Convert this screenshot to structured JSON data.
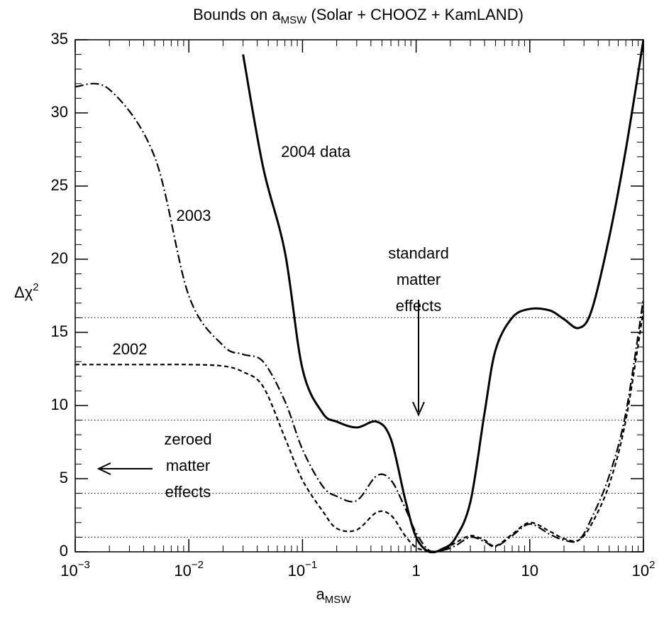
{
  "chart_data": {
    "type": "line",
    "title": {
      "main": "Bounds on a",
      "sub": "MSW",
      "rest": " (Solar + CHOOZ + KamLAND)"
    },
    "xlabel": {
      "main": "a",
      "sub": "MSW"
    },
    "ylabel": {
      "main": "Δχ",
      "sup": "2"
    },
    "xscale": "log",
    "xlim": [
      0.001,
      100
    ],
    "ylim": [
      0,
      35
    ],
    "xticks": [
      {
        "value": 0.001,
        "label": "10",
        "exponent": "−3"
      },
      {
        "value": 0.01,
        "label": "10",
        "exponent": "−2"
      },
      {
        "value": 0.1,
        "label": "10",
        "exponent": "−1"
      },
      1,
      10,
      {
        "value": 100,
        "label": "10",
        "exponent": "2"
      }
    ],
    "yticks": [
      0,
      5,
      10,
      15,
      20,
      25,
      30,
      35
    ],
    "reference_lines": [
      1,
      4,
      9,
      16
    ],
    "x": [
      0.001,
      0.002,
      0.005,
      0.01,
      0.02,
      0.03,
      0.045,
      0.07,
      0.1,
      0.15,
      0.2,
      0.3,
      0.45,
      0.6,
      0.8,
      1,
      1.3,
      1.7,
      2.2,
      3,
      4,
      5,
      7,
      10,
      15,
      20,
      27,
      35,
      50,
      70,
      100
    ],
    "series": [
      {
        "name": "2004 data",
        "color": "#000000",
        "style": "solid",
        "values": [
          null,
          null,
          null,
          null,
          null,
          34,
          26.3,
          20.5,
          12.5,
          9.5,
          8.9,
          8.5,
          8.9,
          7.7,
          3.6,
          1.0,
          0,
          0.2,
          0.9,
          3.4,
          9.5,
          13.8,
          16,
          16.6,
          16.5,
          15.9,
          15.3,
          16.5,
          21.5,
          27.5,
          35
        ]
      },
      {
        "name": "2003",
        "color": "#000000",
        "style": "dashdot",
        "values": [
          31.8,
          31.6,
          27,
          17.5,
          14.1,
          13.5,
          13,
          10.3,
          7,
          4.5,
          3.8,
          3.5,
          5.2,
          4.9,
          3,
          1.3,
          0.1,
          0.1,
          0.4,
          1.0,
          0.7,
          0.35,
          1.1,
          1.9,
          1.2,
          0.8,
          0.8,
          2.3,
          5.2,
          9.5,
          17.3
        ]
      },
      {
        "name": "2002",
        "color": "#000000",
        "style": "dashed",
        "values": [
          12.8,
          12.8,
          12.8,
          12.8,
          12.7,
          12.3,
          11.3,
          7.8,
          4.9,
          2.8,
          1.6,
          1.5,
          2.7,
          2.5,
          1.1,
          0.3,
          0.05,
          0.1,
          0.6,
          1.1,
          0.8,
          0.4,
          1.2,
          2.0,
          1.4,
          0.9,
          0.8,
          1.9,
          4.6,
          9,
          16.5
        ]
      }
    ],
    "annotations": {
      "standard": [
        "standard",
        "matter",
        "effects"
      ],
      "zeroed": [
        "zeroed",
        "matter",
        "effects"
      ]
    }
  }
}
